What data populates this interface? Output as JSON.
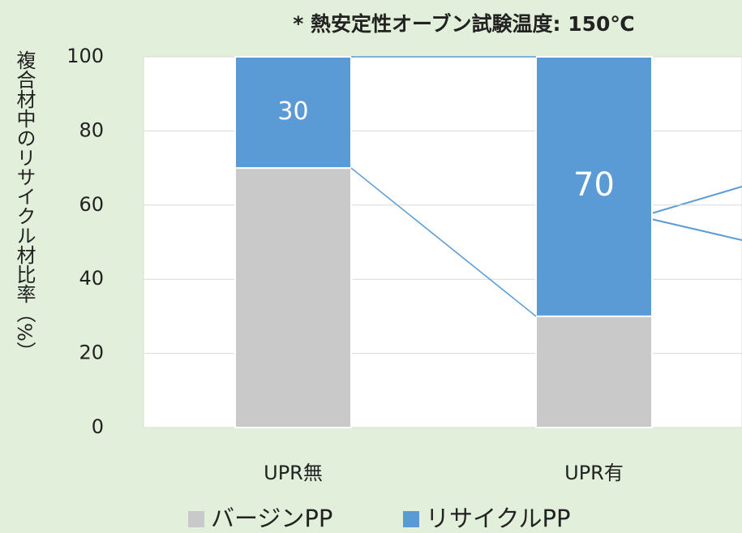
{
  "chart_data": {
    "type": "stacked_bar",
    "title": "* 熱安定性オーブン試験温度: 150℃",
    "y_axis_label": "複合材中のリサイクル材比率（%）",
    "categories": [
      "UPR無",
      "UPR有"
    ],
    "series": [
      {
        "name": "バージンPP",
        "color": "#c9c9c9",
        "values": [
          70,
          30
        ]
      },
      {
        "name": "リサイクルPP",
        "color": "#5b9bd5",
        "values": [
          30,
          70
        ]
      }
    ],
    "data_labels_series": [
      1
    ],
    "ylim": [
      0,
      100
    ],
    "yticks": [
      0,
      20,
      40,
      60,
      80,
      100
    ],
    "grid": true
  }
}
